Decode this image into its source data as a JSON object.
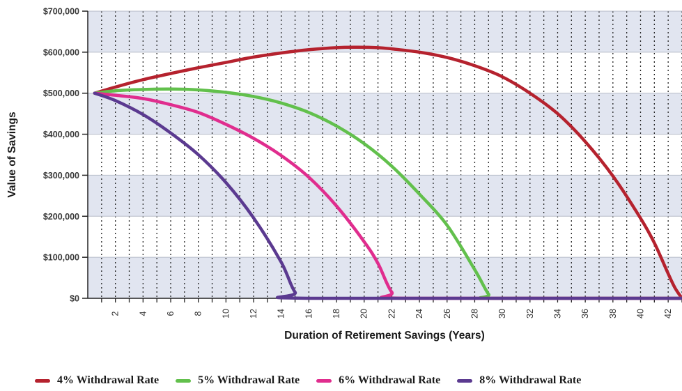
{
  "chart_data": {
    "type": "line",
    "title": "",
    "xlabel": "Duration of Retirement Savings (Years)",
    "ylabel": "Value of Savings",
    "xlim": [
      0,
      43
    ],
    "ylim": [
      0,
      700000
    ],
    "x_ticks": [
      2,
      4,
      6,
      8,
      10,
      12,
      14,
      16,
      18,
      20,
      22,
      24,
      26,
      28,
      30,
      32,
      34,
      36,
      38,
      40,
      42
    ],
    "y_ticks": [
      {
        "value": 0,
        "label": "$0"
      },
      {
        "value": 100000,
        "label": "$100,000"
      },
      {
        "value": 200000,
        "label": "$200,000"
      },
      {
        "value": 300000,
        "label": "$300,000"
      },
      {
        "value": 400000,
        "label": "$400,000"
      },
      {
        "value": 500000,
        "label": "$500,000"
      },
      {
        "value": 600000,
        "label": "$600,000"
      },
      {
        "value": 700000,
        "label": "$700,000"
      }
    ],
    "grid": "vertical dotted lines at each year, horizontal alternating bands",
    "band_color": "#e1e5f0",
    "legend_position": "bottom",
    "series": [
      {
        "name": "4% Withdrawal Rate",
        "color": "#b5222e",
        "points": [
          [
            0.5,
            500000
          ],
          [
            2,
            515000
          ],
          [
            4,
            533000
          ],
          [
            6,
            548000
          ],
          [
            8,
            562000
          ],
          [
            10,
            575000
          ],
          [
            12,
            588000
          ],
          [
            14,
            598000
          ],
          [
            16,
            606000
          ],
          [
            18,
            611000
          ],
          [
            19.5,
            612000
          ],
          [
            21,
            611000
          ],
          [
            22,
            608000
          ],
          [
            24,
            600000
          ],
          [
            26,
            587000
          ],
          [
            28,
            567000
          ],
          [
            30,
            540000
          ],
          [
            32,
            500000
          ],
          [
            34,
            450000
          ],
          [
            36,
            382000
          ],
          [
            38,
            298000
          ],
          [
            40,
            195000
          ],
          [
            41,
            135000
          ],
          [
            42,
            60000
          ],
          [
            42.5,
            25000
          ],
          [
            43,
            0
          ]
        ]
      },
      {
        "name": "5% Withdrawal Rate",
        "color": "#62c04c",
        "points": [
          [
            0.5,
            500000
          ],
          [
            2,
            506000
          ],
          [
            4,
            509000
          ],
          [
            6,
            510000
          ],
          [
            8,
            508000
          ],
          [
            10,
            502000
          ],
          [
            12,
            492000
          ],
          [
            14,
            476000
          ],
          [
            16,
            453000
          ],
          [
            18,
            420000
          ],
          [
            20,
            377000
          ],
          [
            22,
            322000
          ],
          [
            24,
            254000
          ],
          [
            26,
            178000
          ],
          [
            28,
            70000
          ],
          [
            29,
            10000
          ],
          [
            29.5,
            0
          ],
          [
            43,
            0
          ]
        ]
      },
      {
        "name": "6% Withdrawal Rate",
        "color": "#e02d8e",
        "points": [
          [
            0.5,
            500000
          ],
          [
            2,
            495000
          ],
          [
            4,
            487000
          ],
          [
            6,
            472000
          ],
          [
            8,
            453000
          ],
          [
            10,
            424000
          ],
          [
            12,
            390000
          ],
          [
            14,
            348000
          ],
          [
            16,
            295000
          ],
          [
            18,
            225000
          ],
          [
            20,
            138000
          ],
          [
            21,
            85000
          ],
          [
            22,
            15000
          ],
          [
            23,
            0
          ],
          [
            43,
            0
          ]
        ]
      },
      {
        "name": "8% Withdrawal Rate",
        "color": "#5b3a90",
        "points": [
          [
            0.5,
            500000
          ],
          [
            2,
            482000
          ],
          [
            4,
            448000
          ],
          [
            6,
            403000
          ],
          [
            8,
            350000
          ],
          [
            10,
            282000
          ],
          [
            12,
            196000
          ],
          [
            14,
            88000
          ],
          [
            15,
            15000
          ],
          [
            16,
            0
          ],
          [
            43,
            0
          ]
        ]
      }
    ]
  }
}
